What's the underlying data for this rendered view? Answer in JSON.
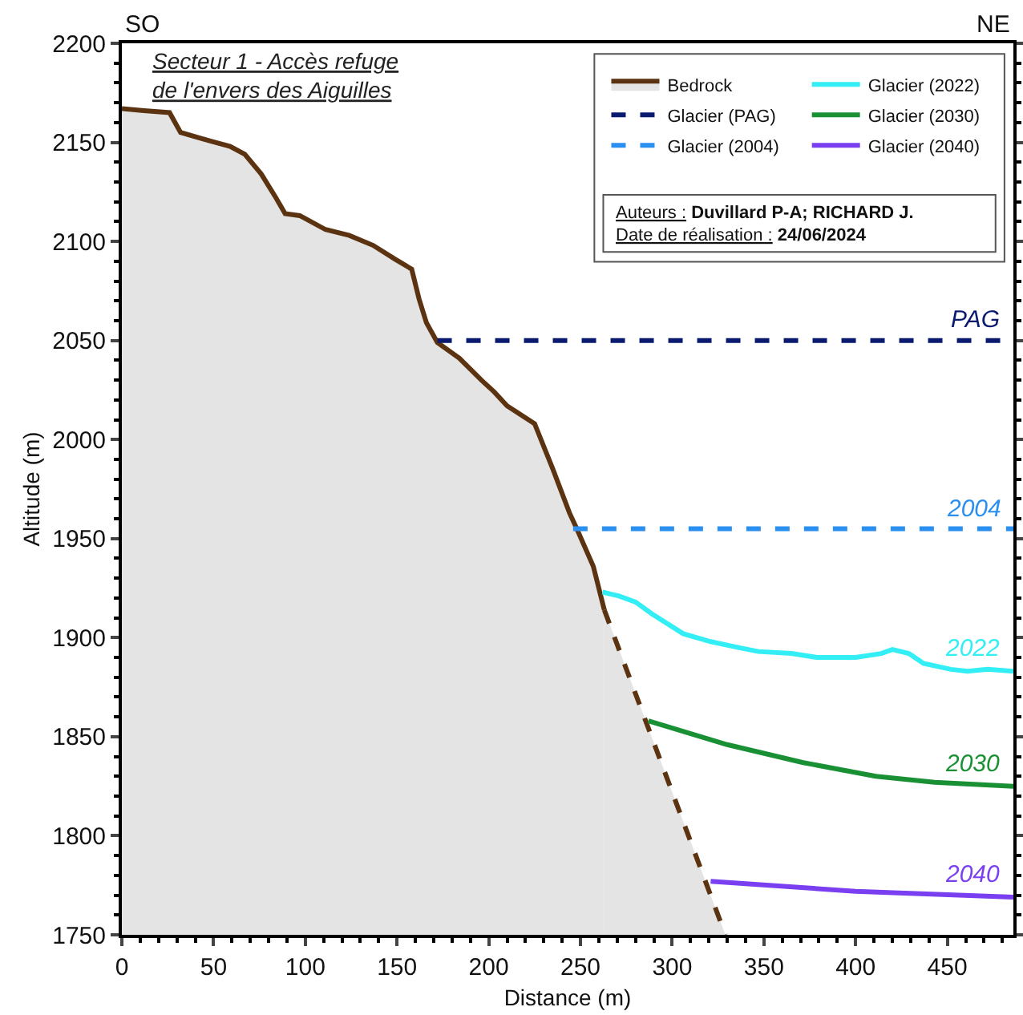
{
  "chart_data": {
    "type": "line",
    "title": "Secteur 1 - Accès refuge\nde l'envers des Aiguilles",
    "xlabel": "Distance (m)",
    "ylabel": "Altitude (m)",
    "xlim": [
      0,
      486
    ],
    "xticks": [
      0,
      50,
      100,
      150,
      200,
      250,
      300,
      350,
      400,
      450
    ],
    "ylim": [
      1750,
      2200
    ],
    "yticks": [
      1750,
      1800,
      1850,
      1900,
      1950,
      2000,
      2050,
      2100,
      2150,
      2200
    ],
    "grid": false,
    "legend": "top right",
    "marker": "none",
    "series": [
      {
        "name": "Bedrock",
        "type": "area",
        "color": "#5c3310",
        "line_style": "solid",
        "x": [
          0,
          12,
          26,
          32,
          47,
          59,
          67,
          76,
          84,
          89,
          97,
          111,
          124,
          137,
          149,
          158,
          162,
          166,
          172,
          184,
          196,
          203,
          210,
          225,
          235,
          244,
          248,
          257,
          263
        ],
        "values": [
          2167,
          2166,
          2165,
          2155,
          2151,
          2148,
          2144,
          2134,
          2122,
          2114,
          2113,
          2106,
          2103,
          2098,
          2091,
          2086,
          2071,
          2059,
          2049,
          2041,
          2030,
          2024,
          2017,
          2008,
          1985,
          1963,
          1955,
          1936,
          1914
        ]
      },
      {
        "type": "area",
        "color": "#5c3310",
        "line_style": "dashed",
        "x": [
          263,
          329
        ],
        "values": [
          1914,
          1750
        ]
      },
      {
        "name": "Glacier (PAG)",
        "color": "#0a1a6e",
        "line_style": "dashed",
        "x": [
          172,
          486
        ],
        "values": [
          2050,
          2050
        ]
      },
      {
        "name": "Glacier (2004)",
        "color": "#2a8ff0",
        "line_style": "dashed",
        "x": [
          246,
          486
        ],
        "values": [
          1955,
          1955
        ]
      },
      {
        "name": "Glacier (2022)",
        "color": "#33eef5",
        "line_style": "solid",
        "x": [
          262,
          271,
          280,
          289,
          306,
          321,
          336,
          347,
          365,
          379,
          400,
          414,
          420,
          429,
          437,
          452,
          461,
          472,
          486
        ],
        "values": [
          1923,
          1921,
          1918,
          1912,
          1902,
          1898,
          1895,
          1893,
          1892,
          1890,
          1890,
          1892,
          1894,
          1892,
          1887,
          1884,
          1883,
          1884,
          1883
        ]
      },
      {
        "name": "Glacier (2030)",
        "color": "#1a9035",
        "line_style": "solid",
        "x": [
          287,
          330,
          371,
          411,
          443,
          486
        ],
        "values": [
          1858,
          1846,
          1837,
          1830,
          1827,
          1825
        ]
      },
      {
        "name": "Glacier (2040)",
        "color": "#7a3ff0",
        "line_style": "solid",
        "x": [
          321,
          400,
          486
        ],
        "values": [
          1777,
          1772,
          1769
        ]
      }
    ],
    "annotations": [
      "SO",
      "NE",
      "Auteurs : Duvillard P-A; RICHARD J.",
      "Date de réalisation : 24/06/2024",
      {
        "text": "PAG",
        "y": 2050
      },
      {
        "text": "2004",
        "y": 1955
      },
      {
        "text": "2022",
        "y": 1884
      },
      {
        "text": "2030",
        "y": 1826
      },
      {
        "text": "2040",
        "y": 1770
      }
    ]
  }
}
